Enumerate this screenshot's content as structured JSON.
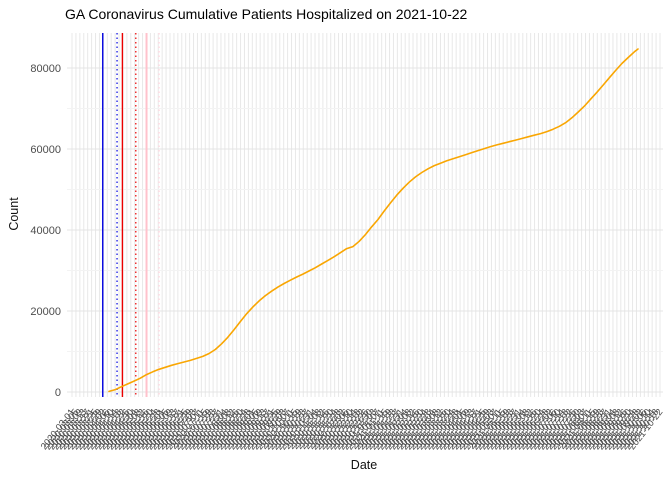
{
  "chart_data": {
    "type": "line",
    "title": "GA Coronavirus Cumulative Patients Hospitalized on 2021-10-22",
    "xlabel": "Date",
    "ylabel": "Count",
    "ylim": [
      0,
      88000
    ],
    "grid": "on",
    "legend": "none",
    "y_ticks": [
      0,
      20000,
      40000,
      60000,
      80000
    ],
    "y_minor_ticks": [
      10000,
      30000,
      50000,
      70000
    ],
    "x_axis": {
      "tick_start_date": "2020-03-01",
      "tick_end_date": "2021-10-22",
      "tick_step_days": 4,
      "tick_count": 151,
      "note": "rotated date tick labels, densely overlapping and illegible"
    },
    "series": [
      {
        "name": "cumulative-patients-hospitalized",
        "color": "#F9A602",
        "points": [
          [
            "2020-03-09",
            150
          ],
          [
            "2020-03-16",
            600
          ],
          [
            "2020-03-23",
            1300
          ],
          [
            "2020-03-30",
            2000
          ],
          [
            "2020-04-06",
            2700
          ],
          [
            "2020-04-13",
            3400
          ],
          [
            "2020-04-20",
            4300
          ],
          [
            "2020-04-27",
            5000
          ],
          [
            "2020-05-04",
            5600
          ],
          [
            "2020-05-11",
            6100
          ],
          [
            "2020-05-18",
            6600
          ],
          [
            "2020-05-25",
            7000
          ],
          [
            "2020-06-01",
            7400
          ],
          [
            "2020-06-08",
            7800
          ],
          [
            "2020-06-15",
            8300
          ],
          [
            "2020-06-22",
            8800
          ],
          [
            "2020-06-29",
            9500
          ],
          [
            "2020-07-06",
            10500
          ],
          [
            "2020-07-13",
            11900
          ],
          [
            "2020-07-20",
            13500
          ],
          [
            "2020-07-27",
            15400
          ],
          [
            "2020-08-03",
            17400
          ],
          [
            "2020-08-10",
            19300
          ],
          [
            "2020-08-17",
            21000
          ],
          [
            "2020-08-24",
            22500
          ],
          [
            "2020-08-31",
            23800
          ],
          [
            "2020-09-07",
            24900
          ],
          [
            "2020-09-14",
            25900
          ],
          [
            "2020-09-21",
            26800
          ],
          [
            "2020-09-28",
            27600
          ],
          [
            "2020-10-05",
            28400
          ],
          [
            "2020-10-12",
            29100
          ],
          [
            "2020-10-19",
            29900
          ],
          [
            "2020-10-26",
            30700
          ],
          [
            "2020-11-02",
            31600
          ],
          [
            "2020-11-09",
            32500
          ],
          [
            "2020-11-16",
            33400
          ],
          [
            "2020-11-23",
            34400
          ],
          [
            "2020-11-30",
            35400
          ],
          [
            "2020-12-07",
            35900
          ],
          [
            "2020-12-14",
            37200
          ],
          [
            "2020-12-21",
            38900
          ],
          [
            "2020-12-28",
            40800
          ],
          [
            "2021-01-04",
            42600
          ],
          [
            "2021-01-11",
            44700
          ],
          [
            "2021-01-18",
            46700
          ],
          [
            "2021-01-25",
            48600
          ],
          [
            "2021-02-01",
            50300
          ],
          [
            "2021-02-08",
            51800
          ],
          [
            "2021-02-15",
            53100
          ],
          [
            "2021-02-22",
            54200
          ],
          [
            "2021-03-01",
            55100
          ],
          [
            "2021-03-08",
            55900
          ],
          [
            "2021-03-15",
            56500
          ],
          [
            "2021-03-22",
            57100
          ],
          [
            "2021-03-29",
            57600
          ],
          [
            "2021-04-05",
            58100
          ],
          [
            "2021-04-12",
            58600
          ],
          [
            "2021-04-19",
            59100
          ],
          [
            "2021-04-26",
            59600
          ],
          [
            "2021-05-03",
            60100
          ],
          [
            "2021-05-10",
            60600
          ],
          [
            "2021-05-17",
            61000
          ],
          [
            "2021-05-24",
            61400
          ],
          [
            "2021-05-31",
            61800
          ],
          [
            "2021-06-07",
            62200
          ],
          [
            "2021-06-14",
            62600
          ],
          [
            "2021-06-21",
            63000
          ],
          [
            "2021-06-28",
            63400
          ],
          [
            "2021-07-05",
            63800
          ],
          [
            "2021-07-12",
            64300
          ],
          [
            "2021-07-19",
            64900
          ],
          [
            "2021-07-26",
            65600
          ],
          [
            "2021-08-02",
            66500
          ],
          [
            "2021-08-09",
            67700
          ],
          [
            "2021-08-16",
            69100
          ],
          [
            "2021-08-23",
            70600
          ],
          [
            "2021-08-30",
            72300
          ],
          [
            "2021-09-06",
            74000
          ],
          [
            "2021-09-13",
            75800
          ],
          [
            "2021-09-20",
            77600
          ],
          [
            "2021-09-27",
            79400
          ],
          [
            "2021-10-04",
            81100
          ],
          [
            "2021-10-11",
            82600
          ],
          [
            "2021-10-18",
            84000
          ],
          [
            "2021-10-22",
            84700
          ]
        ]
      }
    ],
    "event_vlines": [
      {
        "date": "2020-03-02",
        "color": "#0000E0",
        "style": "solid",
        "width": 1.4
      },
      {
        "date": "2020-03-18",
        "color": "#0000E0",
        "style": "dotted",
        "width": 1.2
      },
      {
        "date": "2020-03-24",
        "color": "#EB0000",
        "style": "solid",
        "width": 1.4
      },
      {
        "date": "2020-04-08",
        "color": "#EB0000",
        "style": "dotted",
        "width": 1.2
      },
      {
        "date": "2020-04-20",
        "color": "#FFC2CC",
        "style": "solid",
        "width": 2.0
      },
      {
        "date": "2020-05-04",
        "color": "#FFDCE3",
        "style": "dotted",
        "width": 1.6
      }
    ],
    "colors": {
      "series": "#F9A602",
      "grid_vertical": "#E8E8E8",
      "grid_major_horizontal": "#E4E4E4",
      "grid_minor_horizontal": "#F3F3F3",
      "axis_text": "#4D4D4D",
      "background": "#FFFFFF"
    }
  }
}
